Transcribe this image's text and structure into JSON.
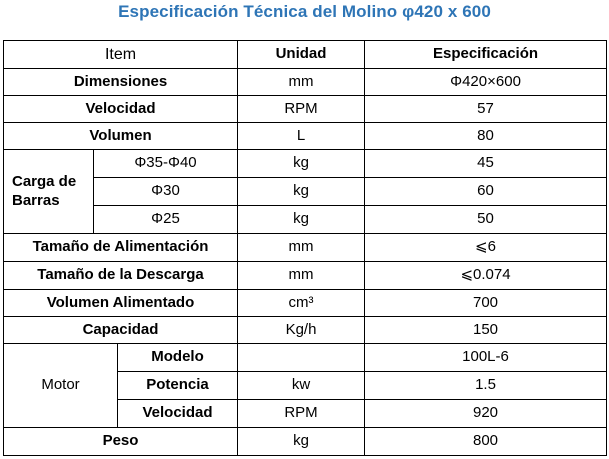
{
  "title": "Especificación Técnica del Molino φ420 x 600",
  "headers": {
    "item": "Item",
    "unidad": "Unidad",
    "especificacion": "Especificación"
  },
  "rows": {
    "dimensiones": {
      "label": "Dimensiones",
      "unit": "mm",
      "value": "Φ420×600"
    },
    "velocidad": {
      "label": "Velocidad",
      "unit": "RPM",
      "value": "57"
    },
    "volumen": {
      "label": "Volumen",
      "unit": "L",
      "value": "80"
    },
    "carga": {
      "label": "Carga de Barras",
      "items": [
        {
          "sub": "Φ35-Φ40",
          "unit": "kg",
          "value": "45"
        },
        {
          "sub": "Φ30",
          "unit": "kg",
          "value": "60"
        },
        {
          "sub": "Φ25",
          "unit": "kg",
          "value": "50"
        }
      ]
    },
    "alimentacion": {
      "label": "Tamaño de Alimentación",
      "unit": "mm",
      "value": "⩽6"
    },
    "descarga": {
      "label": "Tamaño de la Descarga",
      "unit": "mm",
      "value": "⩽0.074"
    },
    "volumen_alimentado": {
      "label": "Volumen Alimentado",
      "unit": "cm³",
      "value": "700"
    },
    "capacidad": {
      "label": "Capacidad",
      "unit": "Kg/h",
      "value": "150"
    },
    "motor": {
      "label": "Motor",
      "items": [
        {
          "sub": "Modelo",
          "unit": "",
          "value": "100L-6"
        },
        {
          "sub": "Potencia",
          "unit": "kw",
          "value": "1.5"
        },
        {
          "sub": "Velocidad",
          "unit": "RPM",
          "value": "920"
        }
      ]
    },
    "peso": {
      "label": "Peso",
      "unit": "kg",
      "value": "800"
    }
  }
}
